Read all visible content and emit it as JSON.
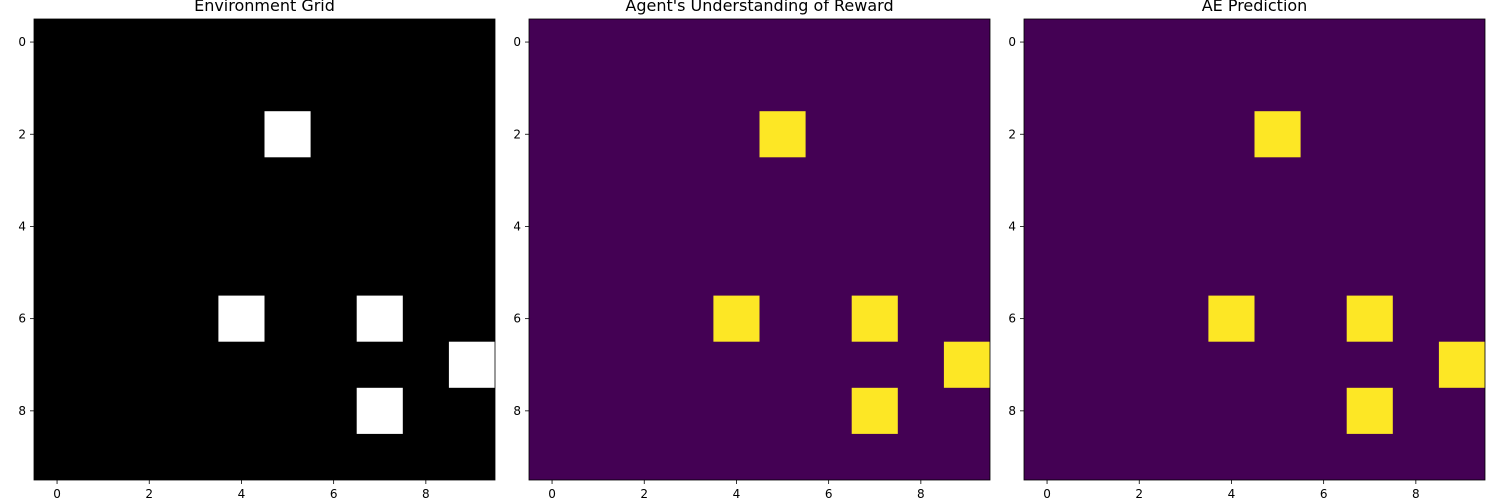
{
  "chart_data": [
    {
      "type": "heatmap",
      "title": "Environment Grid",
      "colormap": "gray",
      "colors": {
        "low": "#000000",
        "high": "#ffffff"
      },
      "grid_size": [
        10,
        10
      ],
      "xlim": [
        -0.5,
        9.5
      ],
      "ylim": [
        9.5,
        -0.5
      ],
      "xticks": [
        0,
        2,
        4,
        6,
        8
      ],
      "yticks": [
        0,
        2,
        4,
        6,
        8
      ],
      "grid": false,
      "cells": [
        {
          "row": 2,
          "col": 5,
          "value": 1
        },
        {
          "row": 6,
          "col": 4,
          "value": 1
        },
        {
          "row": 6,
          "col": 7,
          "value": 1
        },
        {
          "row": 7,
          "col": 9,
          "value": 1
        },
        {
          "row": 8,
          "col": 7,
          "value": 1
        }
      ],
      "default_value": 0
    },
    {
      "type": "heatmap",
      "title": "Agent's Understanding of Reward",
      "colormap": "viridis",
      "colors": {
        "low": "#440154",
        "high": "#fde725"
      },
      "grid_size": [
        10,
        10
      ],
      "xlim": [
        -0.5,
        9.5
      ],
      "ylim": [
        9.5,
        -0.5
      ],
      "xticks": [
        0,
        2,
        4,
        6,
        8
      ],
      "yticks": [
        0,
        2,
        4,
        6,
        8
      ],
      "grid": false,
      "cells": [
        {
          "row": 2,
          "col": 5,
          "value": 1
        },
        {
          "row": 6,
          "col": 4,
          "value": 1
        },
        {
          "row": 6,
          "col": 7,
          "value": 1
        },
        {
          "row": 7,
          "col": 9,
          "value": 1
        },
        {
          "row": 8,
          "col": 7,
          "value": 1
        }
      ],
      "default_value": 0
    },
    {
      "type": "heatmap",
      "title": "AE Prediction",
      "colormap": "viridis",
      "colors": {
        "low": "#440154",
        "high": "#fde725"
      },
      "grid_size": [
        10,
        10
      ],
      "xlim": [
        -0.5,
        9.5
      ],
      "ylim": [
        9.5,
        -0.5
      ],
      "xticks": [
        0,
        2,
        4,
        6,
        8
      ],
      "yticks": [
        0,
        2,
        4,
        6,
        8
      ],
      "grid": false,
      "cells": [
        {
          "row": 2,
          "col": 5,
          "value": 1
        },
        {
          "row": 6,
          "col": 4,
          "value": 1
        },
        {
          "row": 6,
          "col": 7,
          "value": 1
        },
        {
          "row": 7,
          "col": 9,
          "value": 1
        },
        {
          "row": 8,
          "col": 7,
          "value": 1
        }
      ],
      "default_value": 0
    }
  ]
}
